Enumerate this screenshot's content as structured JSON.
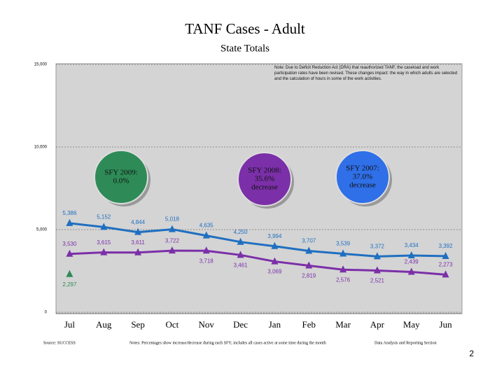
{
  "chart_data": {
    "type": "line",
    "title": "TANF Cases - Adult",
    "subtitle": "State Totals",
    "note": "Note: Due to Deficit Reduction Act (DRA) that reauthorized TANF, the caseload and work participation rates have been revised. These changes impact: the way in which adults are selected and the calculation of hours in some of the work activities.",
    "categories": [
      "Jul",
      "Aug",
      "Sep",
      "Oct",
      "Nov",
      "Dec",
      "Jan",
      "Feb",
      "Mar",
      "Apr",
      "May",
      "Jun"
    ],
    "series": [
      {
        "color": "#1f6fc0",
        "values": [
          5386,
          5152,
          4844,
          5018,
          4635,
          4250,
          3994,
          3707,
          3539,
          3372,
          3434,
          3392
        ],
        "value_labels": [
          "5,386",
          "5,152",
          "4,844",
          "5,018",
          "4,635",
          "4,250",
          "3,994",
          "3,707",
          "3,539",
          "3,372",
          "3,434",
          "3,392"
        ]
      },
      {
        "color": "#7b2fa8",
        "values": [
          3530,
          3615,
          3611,
          3722,
          3718,
          3461,
          3069,
          2819,
          2576,
          2521,
          2439,
          2273
        ],
        "value_labels": [
          "3,530",
          "3,615",
          "3,611",
          "3,722",
          "3,718",
          "3,461",
          "3,069",
          "2,819",
          "2,576",
          "2,521",
          "2,439",
          "2,273"
        ]
      },
      {
        "color": "#2e8b57",
        "values": [
          2297,
          null,
          null,
          null,
          null,
          null,
          null,
          null,
          null,
          null,
          null,
          null
        ],
        "value_labels": [
          "2,297",
          null,
          null,
          null,
          null,
          null,
          null,
          null,
          null,
          null,
          null,
          null
        ]
      }
    ],
    "ylim": [
      0,
      15000
    ],
    "yticks": [
      0,
      {
        "value": 5000,
        "label": "5,000"
      },
      {
        "value": 10000,
        "label": "10,000"
      },
      {
        "value": 15000,
        "label": "15,000"
      }
    ],
    "grid": true,
    "annotations": [
      {
        "lines": [
          "SFY 2009:",
          "0.0%"
        ],
        "color": "#2e8b57"
      },
      {
        "lines": [
          "SFY 2008:",
          "35.6%",
          "decrease"
        ],
        "color": "#7b2fa8"
      },
      {
        "lines": [
          "SFY 2007:",
          "37.0%",
          "decrease"
        ],
        "color": "#2f6fe8"
      }
    ],
    "footnotes": [
      "Source: SUCCESS",
      "Notes: Percentages show increase/decrease during each SFY; includes all cases active at some time during the month",
      "Data Analysis and Reporting Section"
    ]
  },
  "page_number": "2"
}
